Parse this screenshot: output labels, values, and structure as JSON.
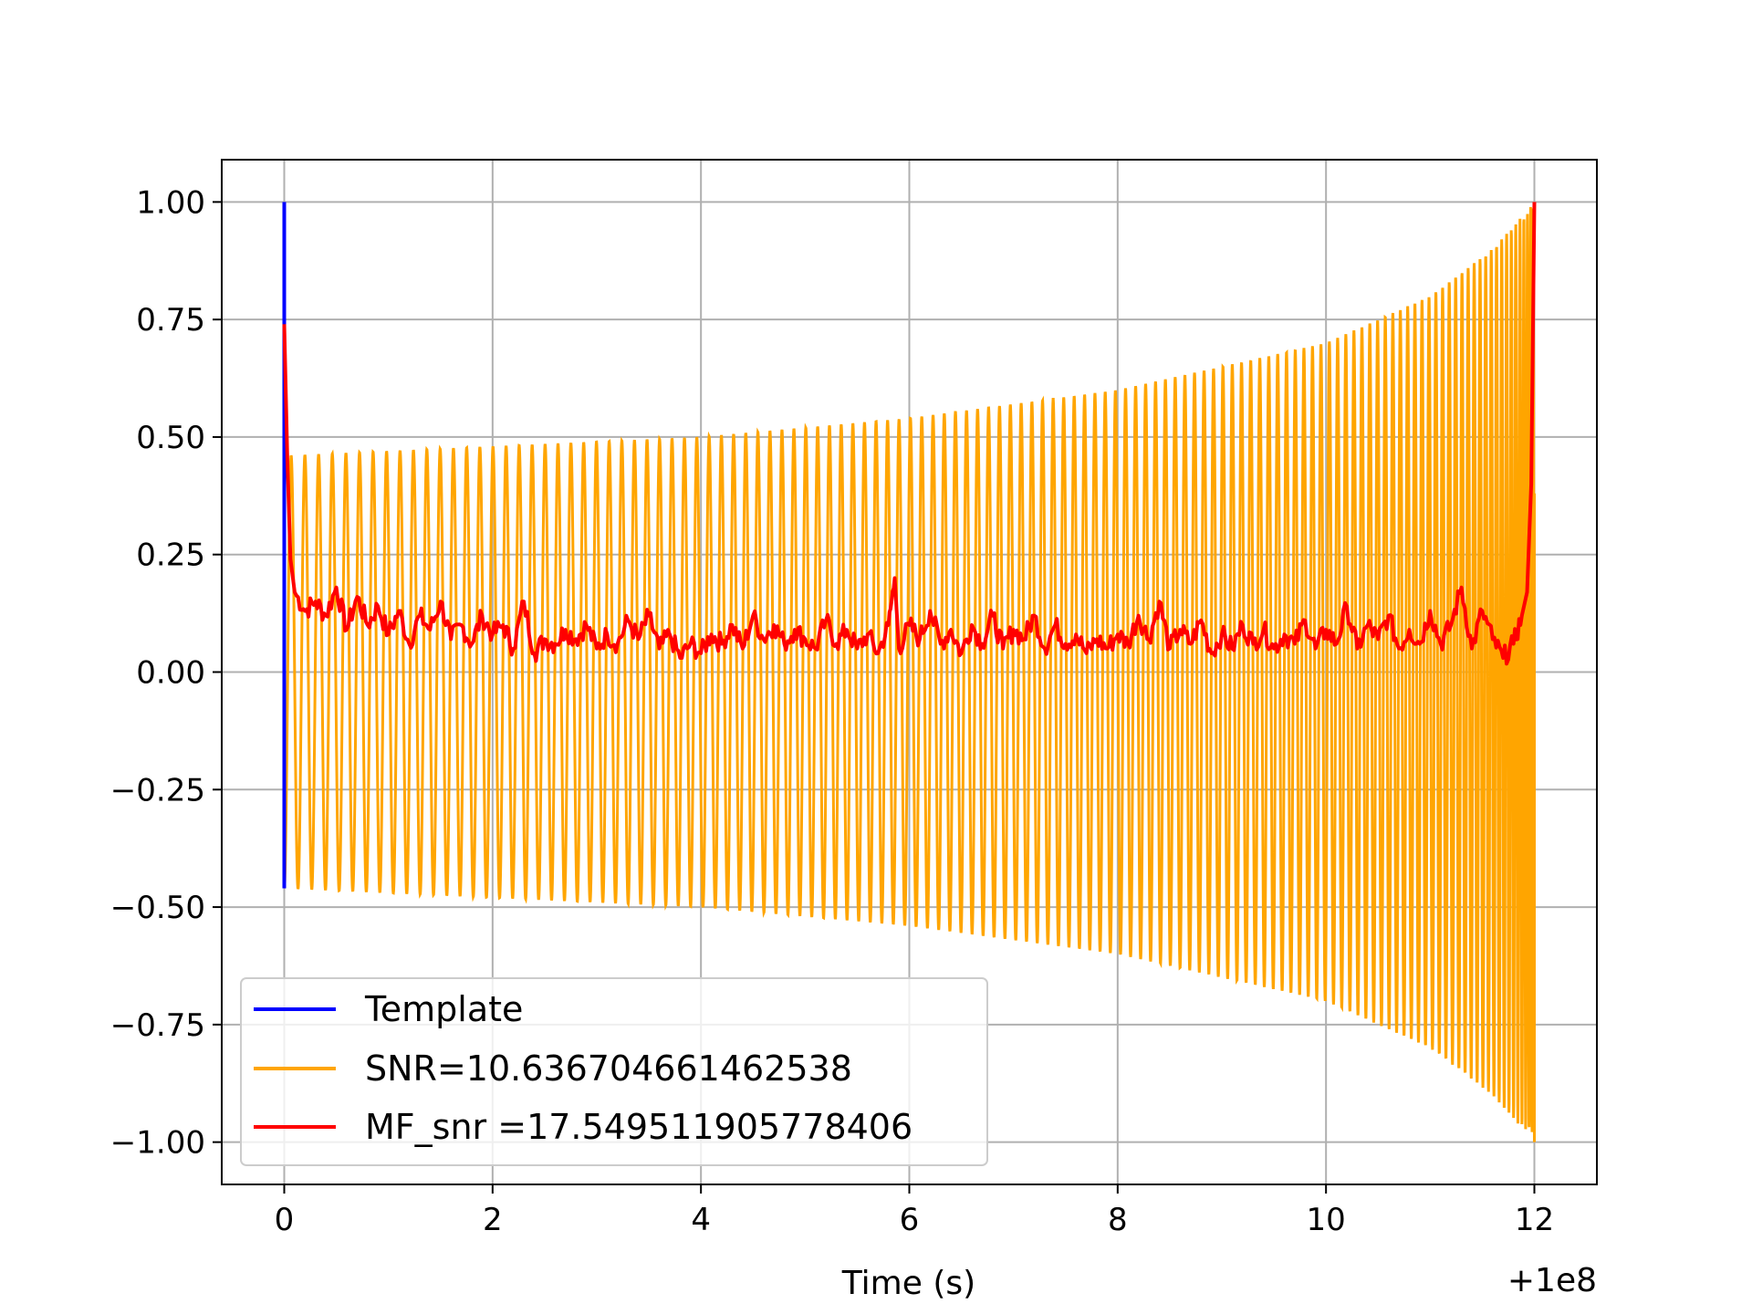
{
  "chart_data": {
    "type": "line",
    "title": "",
    "xlabel": "Time (s)",
    "ylabel": "",
    "x_offset_label": "+1e8",
    "xlim": [
      -0.6,
      12.6
    ],
    "ylim": [
      -1.09,
      1.09
    ],
    "grid": true,
    "legend_position": "lower-left",
    "x_ticks": [
      0,
      2,
      4,
      6,
      8,
      10,
      12
    ],
    "x_tick_labels": [
      "0",
      "2",
      "4",
      "6",
      "8",
      "10",
      "12"
    ],
    "y_ticks": [
      1.0,
      0.75,
      0.5,
      0.25,
      0.0,
      -0.25,
      -0.5,
      -0.75,
      -1.0
    ],
    "y_tick_labels": [
      "1.00",
      "0.75",
      "0.50",
      "0.25",
      "0.00",
      "−0.25",
      "−0.50",
      "−0.75",
      "−1.00"
    ],
    "series": [
      {
        "name": "Template",
        "color": "#0000ff",
        "description_points": [
          [
            0.0,
            1.0
          ],
          [
            0.0,
            0.0
          ],
          [
            0.0,
            -0.46
          ]
        ]
      },
      {
        "name": "SNR=10.636704661462538",
        "color": "#ffa500",
        "x_start": 0.0,
        "x_end": 12.0,
        "envelope_points": [
          [
            0.0,
            0.46
          ],
          [
            2.0,
            0.48
          ],
          [
            4.0,
            0.5
          ],
          [
            6.0,
            0.54
          ],
          [
            8.0,
            0.6
          ],
          [
            10.0,
            0.7
          ],
          [
            11.0,
            0.8
          ],
          [
            11.6,
            0.9
          ],
          [
            12.0,
            1.0
          ]
        ],
        "cycles": 125,
        "end_value": 0.38
      },
      {
        "name": "MF_snr =17.549511905778406",
        "color": "#ff0000",
        "points": [
          [
            0.0,
            0.74
          ],
          [
            0.03,
            0.45
          ],
          [
            0.06,
            0.24
          ],
          [
            0.1,
            0.17
          ],
          [
            0.2,
            0.13
          ],
          [
            0.3,
            0.15
          ],
          [
            0.4,
            0.12
          ],
          [
            0.5,
            0.18
          ],
          [
            0.6,
            0.09
          ],
          [
            0.7,
            0.16
          ],
          [
            0.8,
            0.1
          ],
          [
            0.9,
            0.14
          ],
          [
            1.0,
            0.08
          ],
          [
            1.1,
            0.13
          ],
          [
            1.2,
            0.06
          ],
          [
            1.3,
            0.12
          ],
          [
            1.4,
            0.09
          ],
          [
            1.5,
            0.15
          ],
          [
            1.6,
            0.07
          ],
          [
            1.7,
            0.1
          ],
          [
            1.8,
            0.06
          ],
          [
            1.9,
            0.12
          ],
          [
            2.0,
            0.08
          ],
          [
            2.1,
            0.1
          ],
          [
            2.2,
            0.05
          ],
          [
            2.3,
            0.15
          ],
          [
            2.4,
            0.04
          ],
          [
            2.5,
            0.07
          ],
          [
            2.6,
            0.06
          ],
          [
            2.7,
            0.09
          ],
          [
            2.8,
            0.07
          ],
          [
            2.9,
            0.1
          ],
          [
            3.0,
            0.05
          ],
          [
            3.1,
            0.08
          ],
          [
            3.2,
            0.06
          ],
          [
            3.3,
            0.11
          ],
          [
            3.4,
            0.07
          ],
          [
            3.5,
            0.12
          ],
          [
            3.6,
            0.05
          ],
          [
            3.7,
            0.08
          ],
          [
            3.8,
            0.03
          ],
          [
            3.9,
            0.06
          ],
          [
            4.0,
            0.04
          ],
          [
            4.1,
            0.08
          ],
          [
            4.2,
            0.06
          ],
          [
            4.3,
            0.1
          ],
          [
            4.4,
            0.05
          ],
          [
            4.5,
            0.12
          ],
          [
            4.6,
            0.07
          ],
          [
            4.7,
            0.1
          ],
          [
            4.8,
            0.06
          ],
          [
            4.9,
            0.09
          ],
          [
            5.0,
            0.07
          ],
          [
            5.1,
            0.05
          ],
          [
            5.2,
            0.11
          ],
          [
            5.3,
            0.06
          ],
          [
            5.4,
            0.09
          ],
          [
            5.5,
            0.05
          ],
          [
            5.6,
            0.08
          ],
          [
            5.7,
            0.04
          ],
          [
            5.8,
            0.1
          ],
          [
            5.86,
            0.2
          ],
          [
            5.9,
            0.05
          ],
          [
            6.0,
            0.1
          ],
          [
            6.1,
            0.07
          ],
          [
            6.2,
            0.13
          ],
          [
            6.3,
            0.06
          ],
          [
            6.4,
            0.09
          ],
          [
            6.5,
            0.04
          ],
          [
            6.6,
            0.1
          ],
          [
            6.7,
            0.06
          ],
          [
            6.8,
            0.12
          ],
          [
            6.9,
            0.05
          ],
          [
            7.0,
            0.09
          ],
          [
            7.1,
            0.07
          ],
          [
            7.2,
            0.12
          ],
          [
            7.3,
            0.05
          ],
          [
            7.4,
            0.1
          ],
          [
            7.5,
            0.06
          ],
          [
            7.6,
            0.08
          ],
          [
            7.7,
            0.04
          ],
          [
            7.8,
            0.07
          ],
          [
            7.9,
            0.05
          ],
          [
            8.0,
            0.08
          ],
          [
            8.1,
            0.06
          ],
          [
            8.2,
            0.12
          ],
          [
            8.3,
            0.07
          ],
          [
            8.4,
            0.15
          ],
          [
            8.5,
            0.05
          ],
          [
            8.6,
            0.09
          ],
          [
            8.7,
            0.06
          ],
          [
            8.8,
            0.11
          ],
          [
            8.9,
            0.04
          ],
          [
            9.0,
            0.08
          ],
          [
            9.1,
            0.05
          ],
          [
            9.2,
            0.1
          ],
          [
            9.3,
            0.06
          ],
          [
            9.4,
            0.09
          ],
          [
            9.5,
            0.05
          ],
          [
            9.6,
            0.08
          ],
          [
            9.7,
            0.06
          ],
          [
            9.8,
            0.11
          ],
          [
            9.9,
            0.05
          ],
          [
            10.0,
            0.09
          ],
          [
            10.1,
            0.06
          ],
          [
            10.2,
            0.14
          ],
          [
            10.3,
            0.05
          ],
          [
            10.4,
            0.1
          ],
          [
            10.5,
            0.07
          ],
          [
            10.6,
            0.12
          ],
          [
            10.7,
            0.05
          ],
          [
            10.8,
            0.09
          ],
          [
            10.9,
            0.06
          ],
          [
            11.0,
            0.13
          ],
          [
            11.1,
            0.06
          ],
          [
            11.2,
            0.1
          ],
          [
            11.3,
            0.18
          ],
          [
            11.4,
            0.05
          ],
          [
            11.5,
            0.13
          ],
          [
            11.6,
            0.07
          ],
          [
            11.7,
            0.03
          ],
          [
            11.8,
            0.06
          ],
          [
            11.88,
            0.12
          ],
          [
            11.93,
            0.17
          ],
          [
            11.97,
            0.4
          ],
          [
            12.0,
            1.0
          ]
        ]
      }
    ]
  }
}
